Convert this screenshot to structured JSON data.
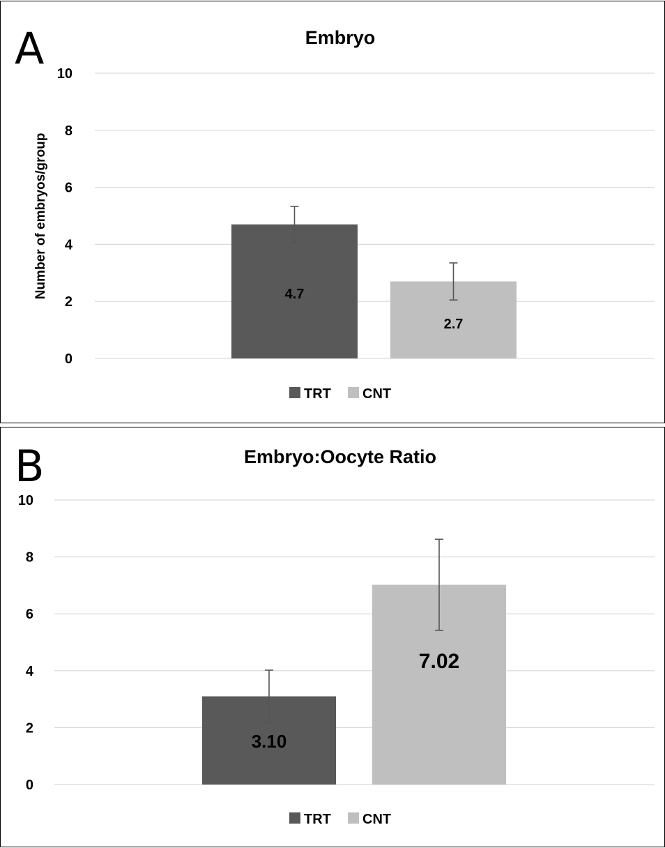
{
  "chart_data": [
    {
      "type": "bar",
      "panel_label": "A",
      "title": "Embryo",
      "ylabel": "Number of embryos/group",
      "xlabel": "",
      "ylim": [
        0,
        10
      ],
      "yticks": [
        "0",
        "2",
        "4",
        "6",
        "8",
        "10"
      ],
      "grid": true,
      "legend_position": "bottom",
      "series": [
        {
          "name": "TRT",
          "value": 4.7,
          "error": 0.63,
          "label": "4.7",
          "color": "#595959"
        },
        {
          "name": "CNT",
          "value": 2.7,
          "error": 0.65,
          "label": "2.7",
          "color": "#bfbfbf"
        }
      ]
    },
    {
      "type": "bar",
      "panel_label": "B",
      "title": "Embryo:Oocyte Ratio",
      "ylabel": "",
      "xlabel": "",
      "ylim": [
        0,
        10
      ],
      "yticks": [
        "0",
        "2",
        "4",
        "6",
        "8",
        "10"
      ],
      "grid": true,
      "legend_position": "bottom",
      "series": [
        {
          "name": "TRT",
          "value": 3.1,
          "error": 0.92,
          "label": "3.10",
          "color": "#595959"
        },
        {
          "name": "CNT",
          "value": 7.02,
          "error": 1.6,
          "label": "7.02",
          "color": "#bfbfbf"
        }
      ]
    }
  ]
}
